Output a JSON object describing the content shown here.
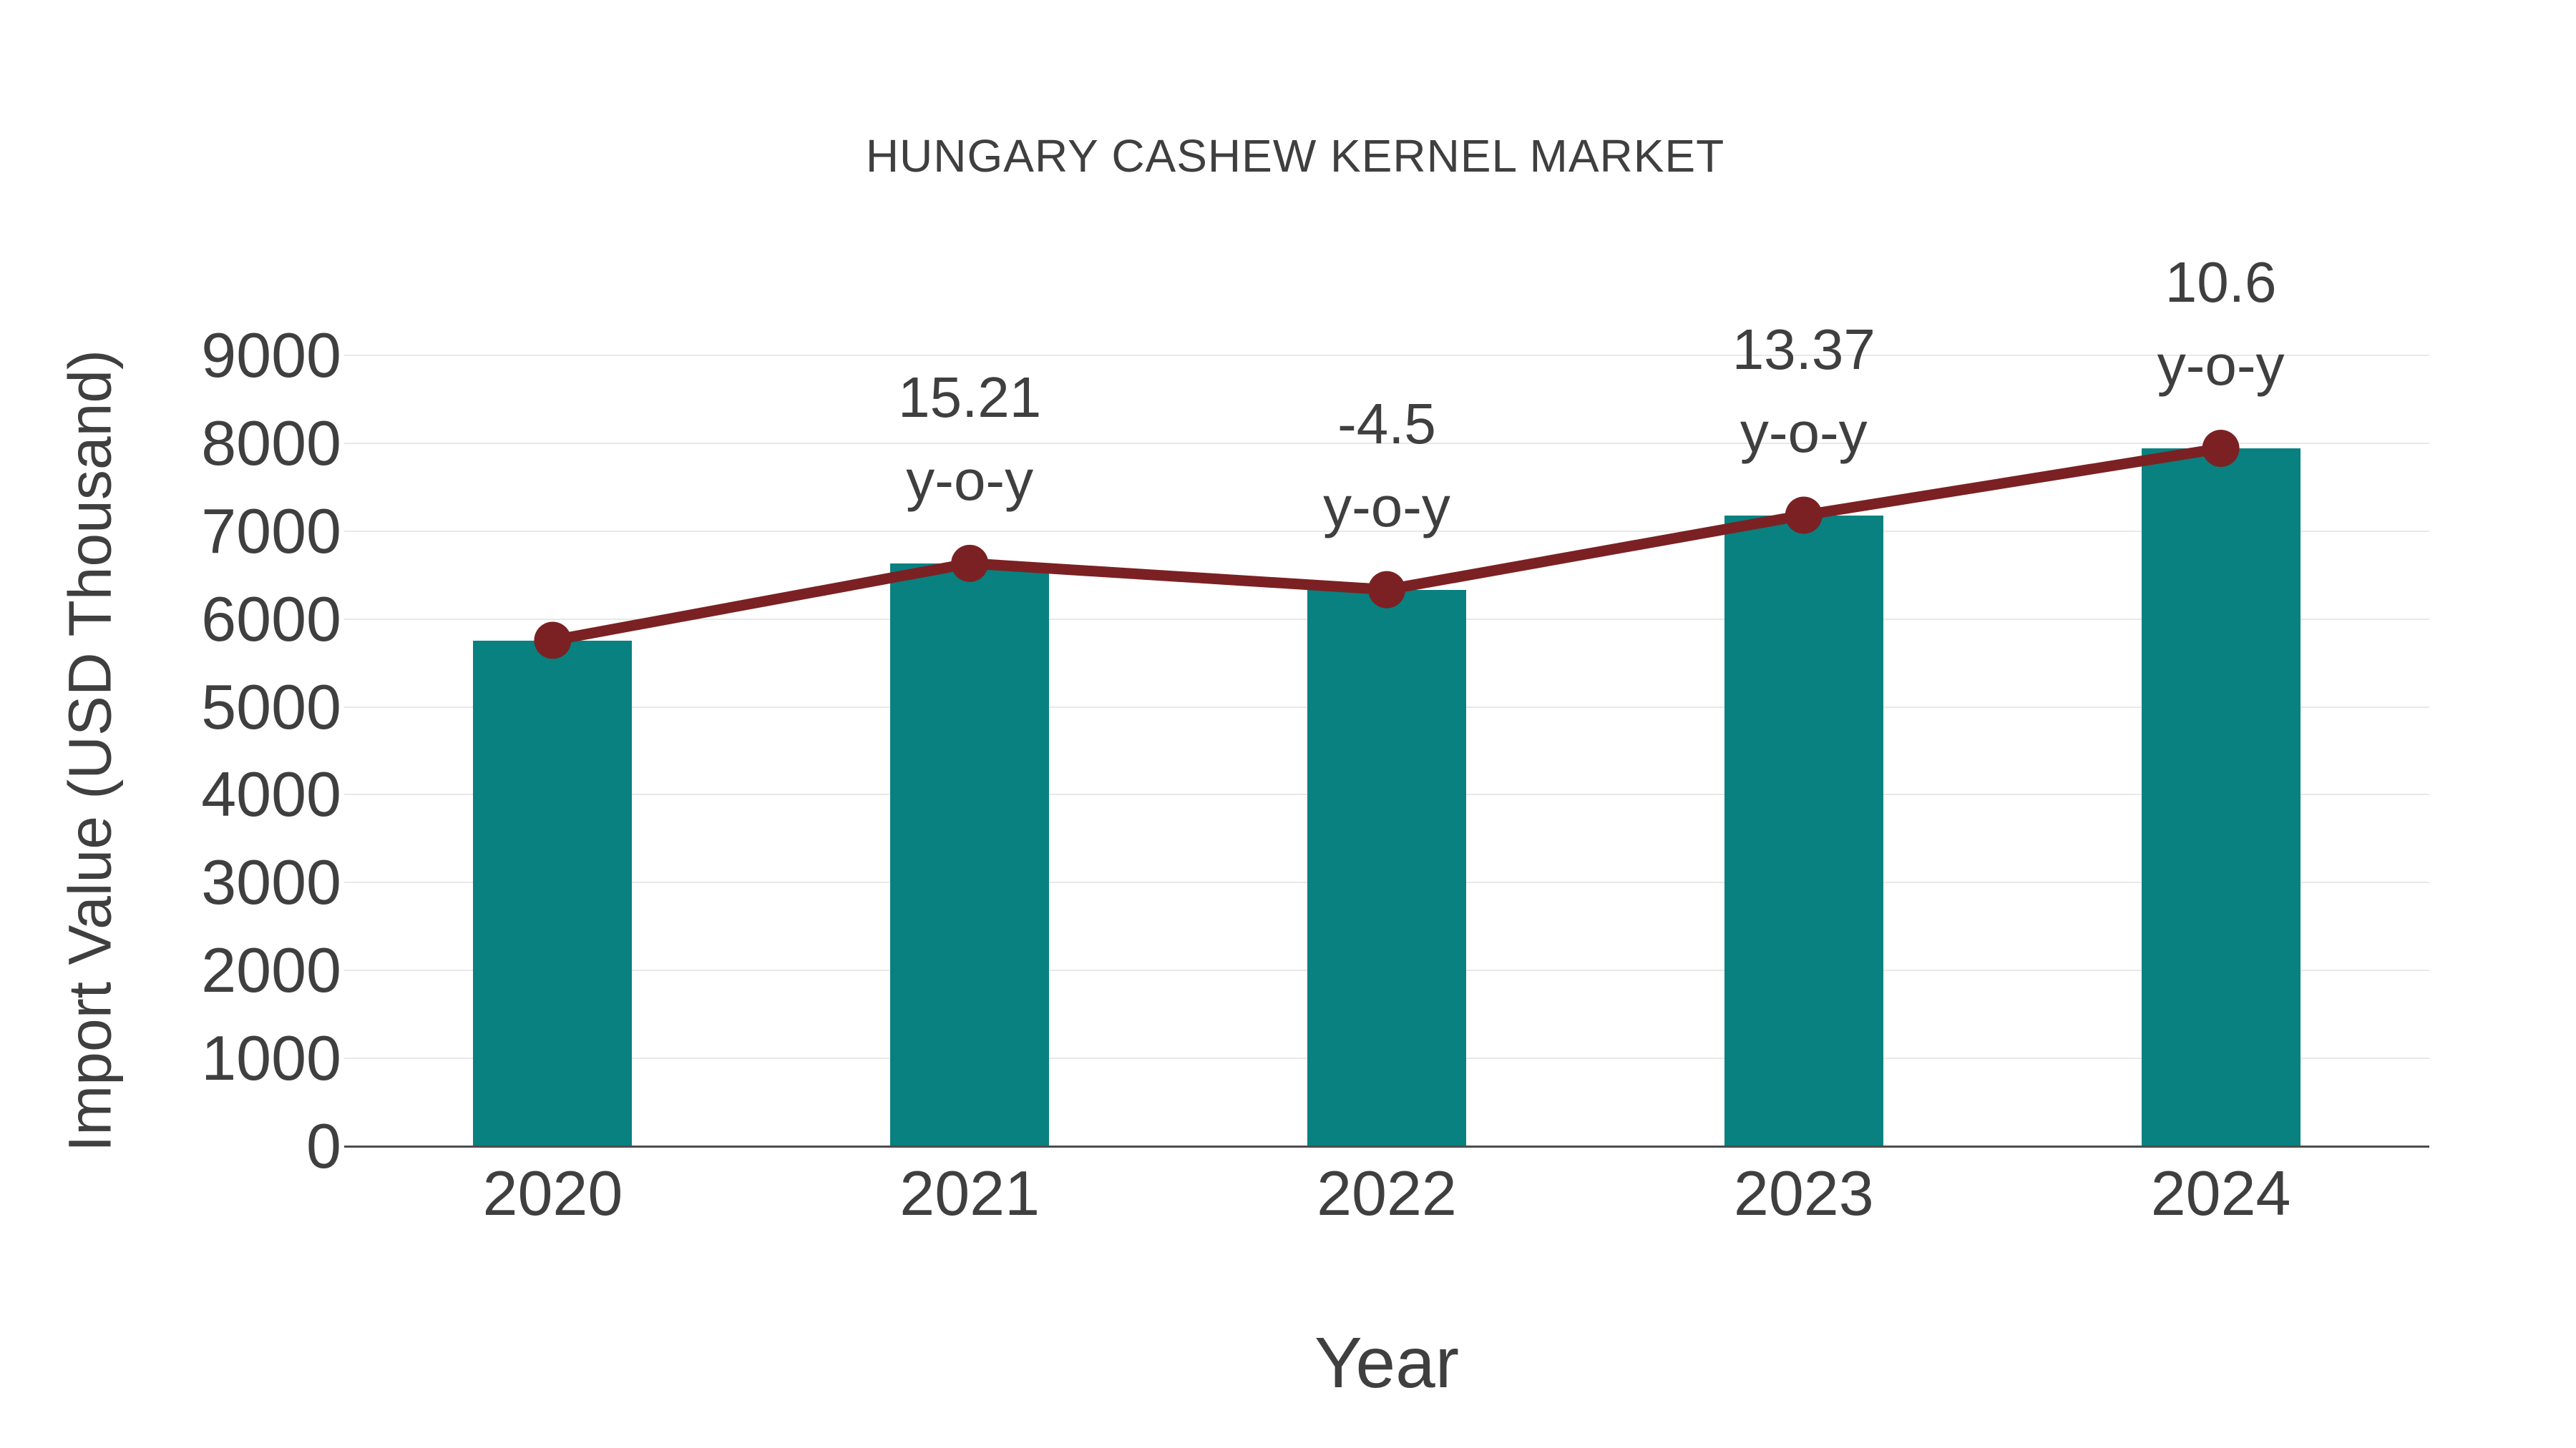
{
  "chart_data": {
    "type": "bar",
    "title": "HUNGARY CASHEW KERNEL MARKET",
    "xlabel": "Year",
    "ylabel": "Import Value (USD Thousand)",
    "categories": [
      "2020",
      "2021",
      "2022",
      "2023",
      "2024"
    ],
    "series": [
      {
        "name": "Import Value bars",
        "type": "bar",
        "color": "#088180",
        "values": [
          5757,
          6633,
          6334,
          7181,
          7942
        ]
      },
      {
        "name": "Import Value trend line",
        "type": "line",
        "color": "#7b2123",
        "marker": "circle",
        "values": [
          5757,
          6633,
          6334,
          7181,
          7942
        ]
      }
    ],
    "annotations": [
      {
        "category": "2021",
        "value_label": "15.21",
        "sub_label": "y-o-y"
      },
      {
        "category": "2022",
        "value_label": "-4.5",
        "sub_label": "y-o-y"
      },
      {
        "category": "2023",
        "value_label": "13.37",
        "sub_label": "y-o-y"
      },
      {
        "category": "2024",
        "value_label": "10.6",
        "sub_label": "y-o-y"
      }
    ],
    "yoy_percent_by_year": {
      "2021": 15.21,
      "2022": -4.5,
      "2023": 13.37,
      "2024": 10.6
    },
    "yticks": [
      0,
      1000,
      2000,
      3000,
      4000,
      5000,
      6000,
      7000,
      8000,
      9000
    ],
    "ylim": [
      0,
      9000
    ],
    "grid": true,
    "legend": "none"
  },
  "colors": {
    "background": "#ffffff",
    "bar": "#088180",
    "line": "#7b2123",
    "text": "#3f3f3f",
    "gridline": "#e8e8e8",
    "axis_line": "#4d4d4d"
  }
}
